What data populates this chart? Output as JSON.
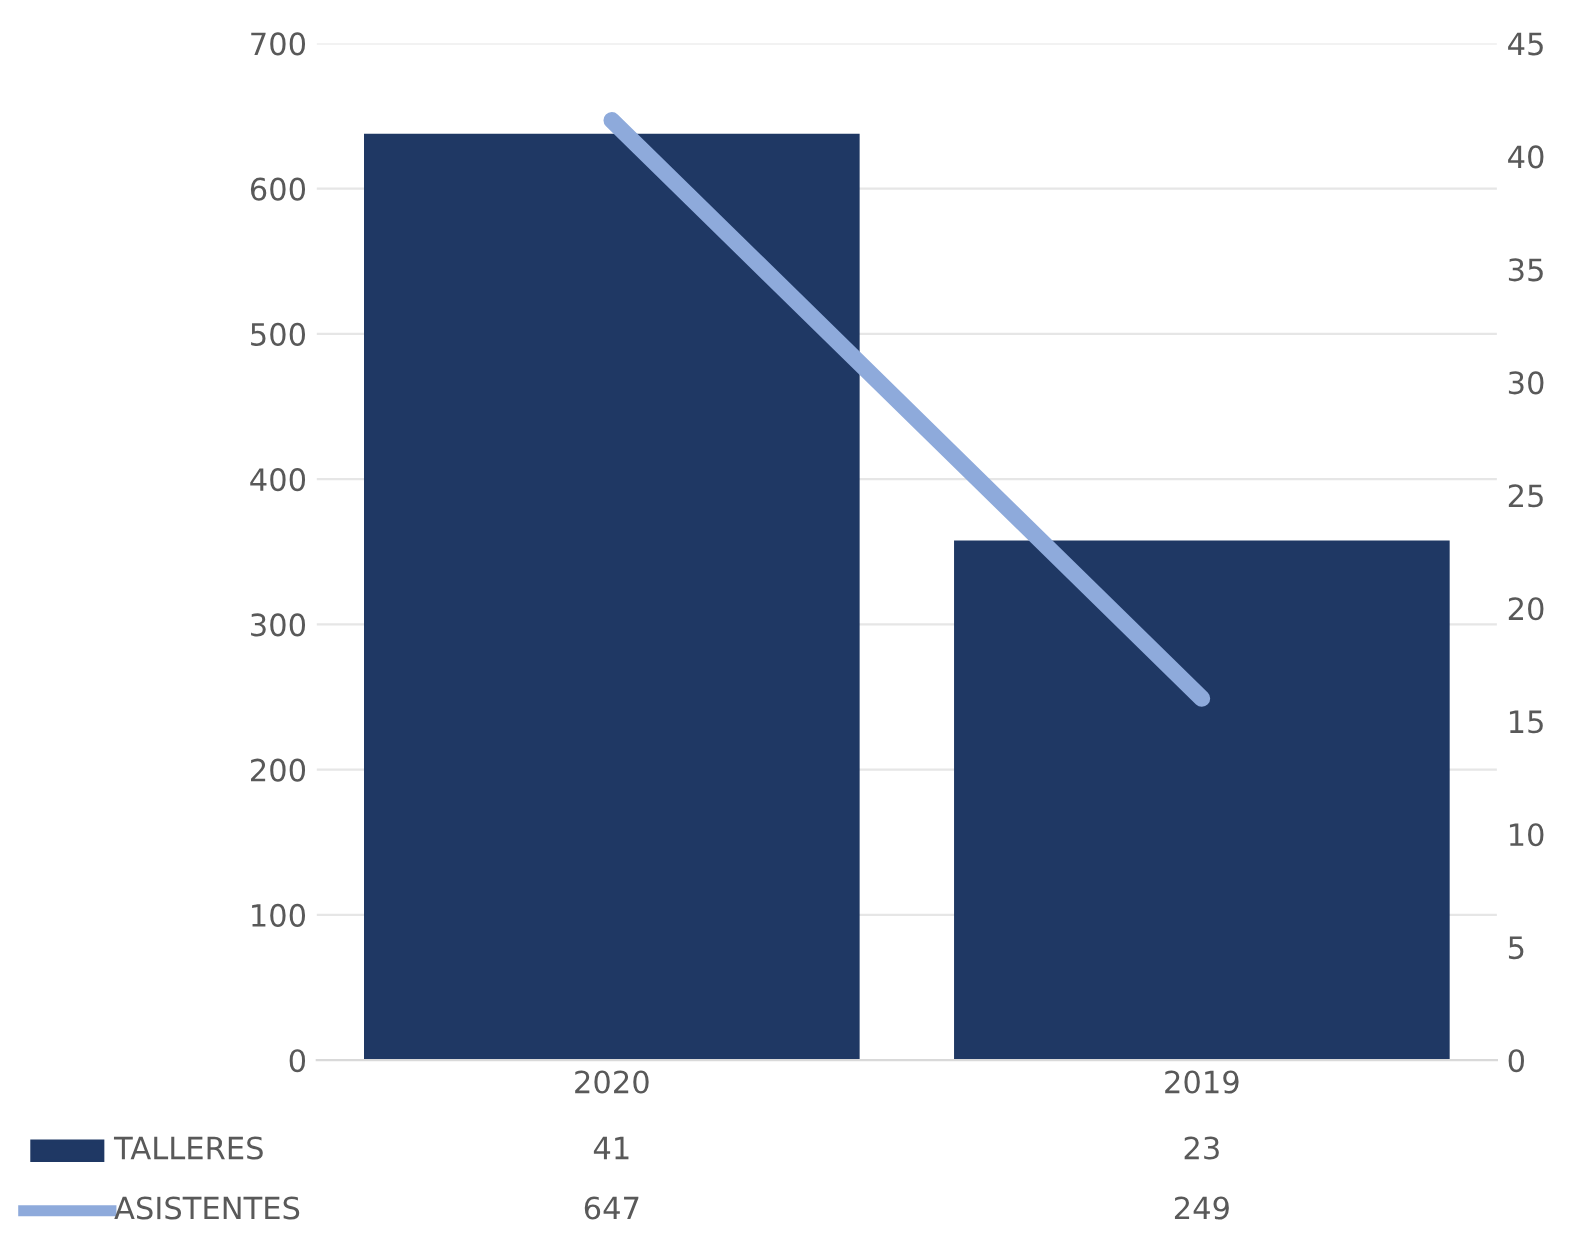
{
  "chart_data": {
    "type": "bar",
    "categories": [
      "2020",
      "2019"
    ],
    "series": [
      {
        "name": "TALLERES",
        "color": "#1f3864",
        "values": [
          41,
          23
        ],
        "axis": "y2"
      },
      {
        "name": "ASISTENTES",
        "color": "#8eaadb",
        "values": [
          647,
          249
        ],
        "axis": "y",
        "type": "line"
      }
    ],
    "ylim": [
      0,
      700
    ],
    "yticks": [
      0,
      100,
      200,
      300,
      400,
      500,
      600,
      700
    ],
    "y2lim": [
      0,
      45
    ],
    "y2ticks": [
      0,
      5,
      10,
      15,
      20,
      25,
      30,
      35,
      40,
      45
    ],
    "grid": "y",
    "legend": "bottom",
    "data_labels": true,
    "marker": "none"
  }
}
